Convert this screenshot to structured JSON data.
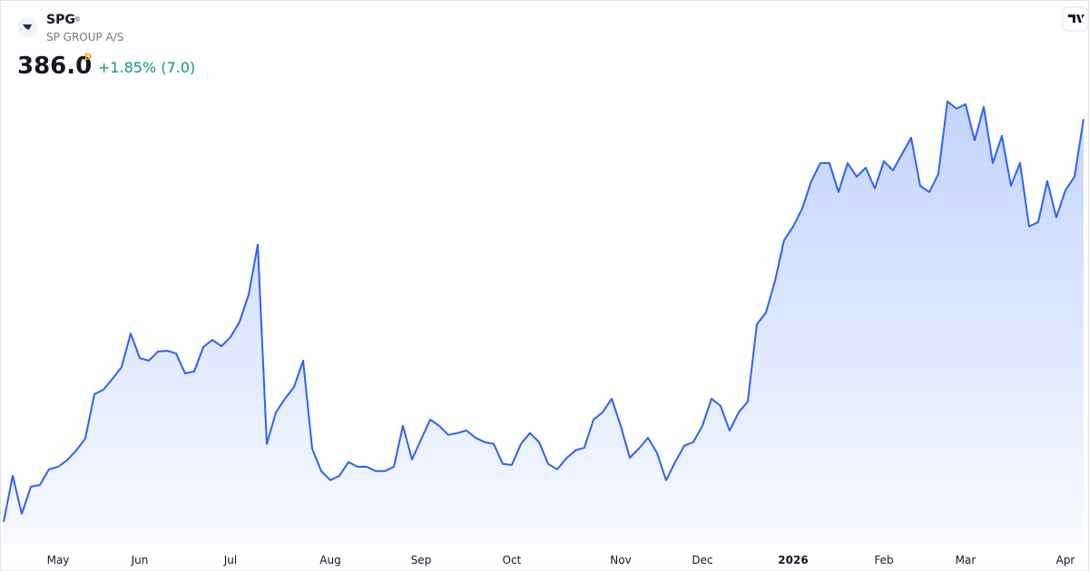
{
  "header": {
    "symbol": "SPG",
    "name": "SP GROUP A/S",
    "price": "386.0",
    "price_flag": "D",
    "change": "+1.85% (7.0)"
  },
  "chart_data": {
    "type": "area",
    "color": "#2962ff",
    "categories": [
      null,
      null,
      null,
      null,
      null,
      null,
      "May",
      null,
      null,
      null,
      null,
      null,
      null,
      null,
      null,
      "Jun",
      null,
      null,
      null,
      null,
      null,
      null,
      null,
      null,
      null,
      "Jul",
      null,
      null,
      null,
      null,
      null,
      null,
      null,
      null,
      null,
      null,
      "Aug",
      null,
      null,
      null,
      null,
      null,
      null,
      null,
      null,
      null,
      "Sep",
      null,
      null,
      null,
      null,
      null,
      null,
      null,
      null,
      null,
      "Oct",
      null,
      null,
      null,
      null,
      null,
      null,
      null,
      null,
      null,
      null,
      null,
      "Nov",
      null,
      null,
      null,
      null,
      null,
      null,
      null,
      null,
      "Dec",
      null,
      null,
      null,
      null,
      null,
      null,
      null,
      null,
      null,
      "2026",
      null,
      null,
      null,
      null,
      null,
      null,
      null,
      null,
      null,
      "Feb",
      null,
      null,
      null,
      null,
      null,
      null,
      null,
      null,
      "Mar",
      null,
      null,
      null,
      null,
      null,
      null,
      null,
      null,
      null,
      null,
      "Apr",
      null,
      null
    ],
    "values": [
      230.4,
      248.2,
      233.5,
      244.0,
      244.7,
      250.7,
      251.7,
      254.2,
      258.0,
      262.6,
      279.7,
      281.5,
      285.7,
      290.2,
      303.2,
      293.7,
      292.7,
      296.2,
      296.5,
      295.5,
      287.8,
      288.5,
      297.9,
      300.7,
      298.3,
      301.8,
      307.7,
      318.2,
      337.5,
      260.5,
      272.7,
      278.0,
      282.5,
      292.7,
      258.7,
      250.0,
      246.5,
      248.2,
      253.5,
      251.7,
      251.7,
      250.0,
      250.0,
      251.7,
      267.5,
      254.5,
      262.2,
      269.9,
      267.5,
      264.0,
      264.7,
      265.7,
      262.9,
      261.2,
      260.5,
      252.8,
      252.4,
      260.5,
      264.7,
      261.2,
      252.8,
      250.7,
      254.9,
      258.0,
      259.1,
      269.9,
      272.7,
      278.0,
      267.5,
      255.2,
      258.7,
      262.9,
      257.0,
      246.5,
      253.5,
      259.8,
      261.2,
      267.5,
      278.0,
      275.2,
      265.7,
      272.7,
      276.9,
      306.7,
      311.2,
      323.5,
      339.2,
      344.5,
      351.5,
      362.0,
      369.0,
      369.0,
      357.8,
      369.0,
      363.7,
      367.2,
      359.2,
      369.7,
      366.2,
      372.5,
      378.8,
      360.2,
      357.8,
      364.8,
      392.8,
      390.0,
      391.7,
      377.7,
      390.7,
      369.0,
      379.5,
      360.2,
      369.0,
      344.5,
      346.2,
      362.0,
      348.0,
      358.5,
      363.7,
      386.0
    ],
    "ylim": [
      228,
      400
    ]
  }
}
